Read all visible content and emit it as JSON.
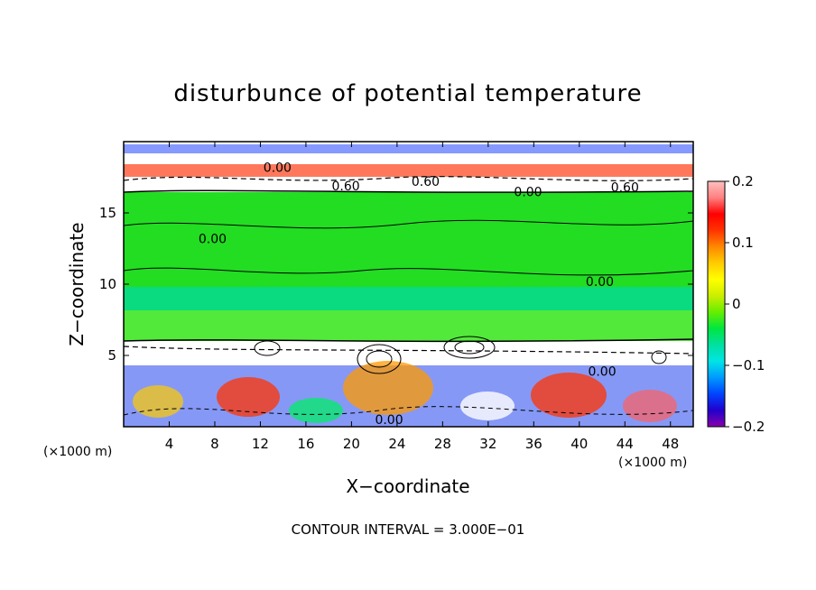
{
  "chart_data": {
    "type": "heatmap",
    "title": "disturbunce of potential temperature",
    "xlabel": "X−coordinate",
    "ylabel": "Z−coordinate",
    "x_unit_left": "(×1000 m)",
    "x_unit_right": "(×1000 m)",
    "xlim": [
      0,
      50
    ],
    "ylim": [
      0,
      20
    ],
    "x_ticks": [
      4,
      8,
      12,
      16,
      20,
      24,
      28,
      32,
      36,
      40,
      44,
      48
    ],
    "x_tick_labels": [
      "4",
      "8",
      "12",
      "16",
      "20",
      "24",
      "28",
      "32",
      "36",
      "40",
      "44",
      "48"
    ],
    "y_ticks": [
      5,
      10,
      15
    ],
    "y_tick_labels": [
      "5",
      "10",
      "15"
    ],
    "colorbar": {
      "range": [
        -0.2,
        0.2
      ],
      "ticks": [
        0.2,
        0.1,
        0,
        -0.1,
        -0.2
      ],
      "tick_labels": [
        "0.2",
        "0.1",
        "0",
        "−0.1",
        "−0.2"
      ],
      "colors": [
        "#8800aa",
        "#2200cc",
        "#0044ff",
        "#0099ff",
        "#00e5e5",
        "#00e0a0",
        "#00e640",
        "#66ee00",
        "#ccee00",
        "#ffff00",
        "#ffcc00",
        "#ff8800",
        "#ff3300",
        "#ff0000",
        "#ff8080",
        "#ffc0c0"
      ]
    },
    "bands": [
      {
        "z_range": [
          16.5,
          20
        ],
        "description": "layer",
        "mean_value": 0.0
      },
      {
        "z_range": [
          6,
          16.5
        ],
        "description": "layer",
        "mean_value": -0.02
      },
      {
        "z_range": [
          0,
          6
        ],
        "description": "layer",
        "mean_value": 0.0
      }
    ],
    "contour_labels": [
      {
        "text": "0.00",
        "x": 13.5,
        "y": 18.2
      },
      {
        "text": "0.60",
        "x": 19.5,
        "y": 16.9
      },
      {
        "text": "0.60",
        "x": 26.5,
        "y": 17.2
      },
      {
        "text": "0.00",
        "x": 35.5,
        "y": 16.5
      },
      {
        "text": "0.60",
        "x": 44.0,
        "y": 16.8
      },
      {
        "text": "0.00",
        "x": 7.8,
        "y": 13.2
      },
      {
        "text": "0.00",
        "x": 41.8,
        "y": 10.2
      },
      {
        "text": "0.00",
        "x": 42.0,
        "y": 3.9
      },
      {
        "text": "0.00",
        "x": 23.3,
        "y": 0.5
      }
    ],
    "footer": "CONTOUR INTERVAL = 3.000E−01"
  }
}
